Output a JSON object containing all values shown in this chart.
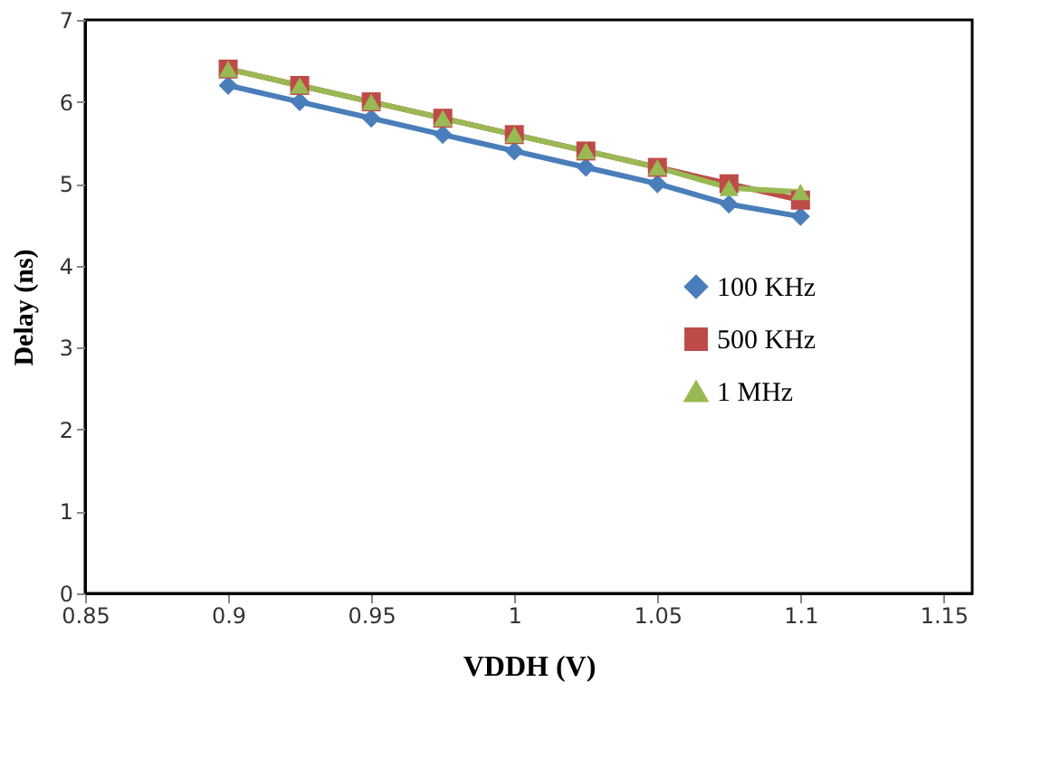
{
  "chart_data": {
    "type": "line",
    "xlabel": "VDDH (V)",
    "ylabel": "Delay (ns)",
    "x": [
      0.9,
      0.925,
      0.95,
      0.975,
      1.0,
      1.025,
      1.05,
      1.075,
      1.1
    ],
    "series": [
      {
        "name": "100 KHz",
        "color": "#4a7ebb",
        "marker": "diamond",
        "values": [
          6.2,
          6.0,
          5.8,
          5.6,
          5.4,
          5.2,
          5.0,
          4.75,
          4.6
        ]
      },
      {
        "name": "500 KHz",
        "color": "#be4b48",
        "marker": "square",
        "values": [
          6.4,
          6.2,
          6.0,
          5.8,
          5.6,
          5.4,
          5.2,
          5.0,
          4.8
        ]
      },
      {
        "name": "1 MHz",
        "color": "#98b954",
        "marker": "triangle",
        "values": [
          6.4,
          6.2,
          6.0,
          5.8,
          5.6,
          5.4,
          5.2,
          4.95,
          4.9
        ]
      }
    ],
    "xlim": [
      0.85,
      1.16
    ],
    "xticks": [
      0.85,
      0.9,
      0.95,
      1,
      1.05,
      1.1,
      1.15
    ],
    "ylim": [
      0,
      7
    ],
    "yticks": [
      0,
      1,
      2,
      3,
      4,
      5,
      6,
      7
    ],
    "grid": false,
    "legend": "right"
  }
}
